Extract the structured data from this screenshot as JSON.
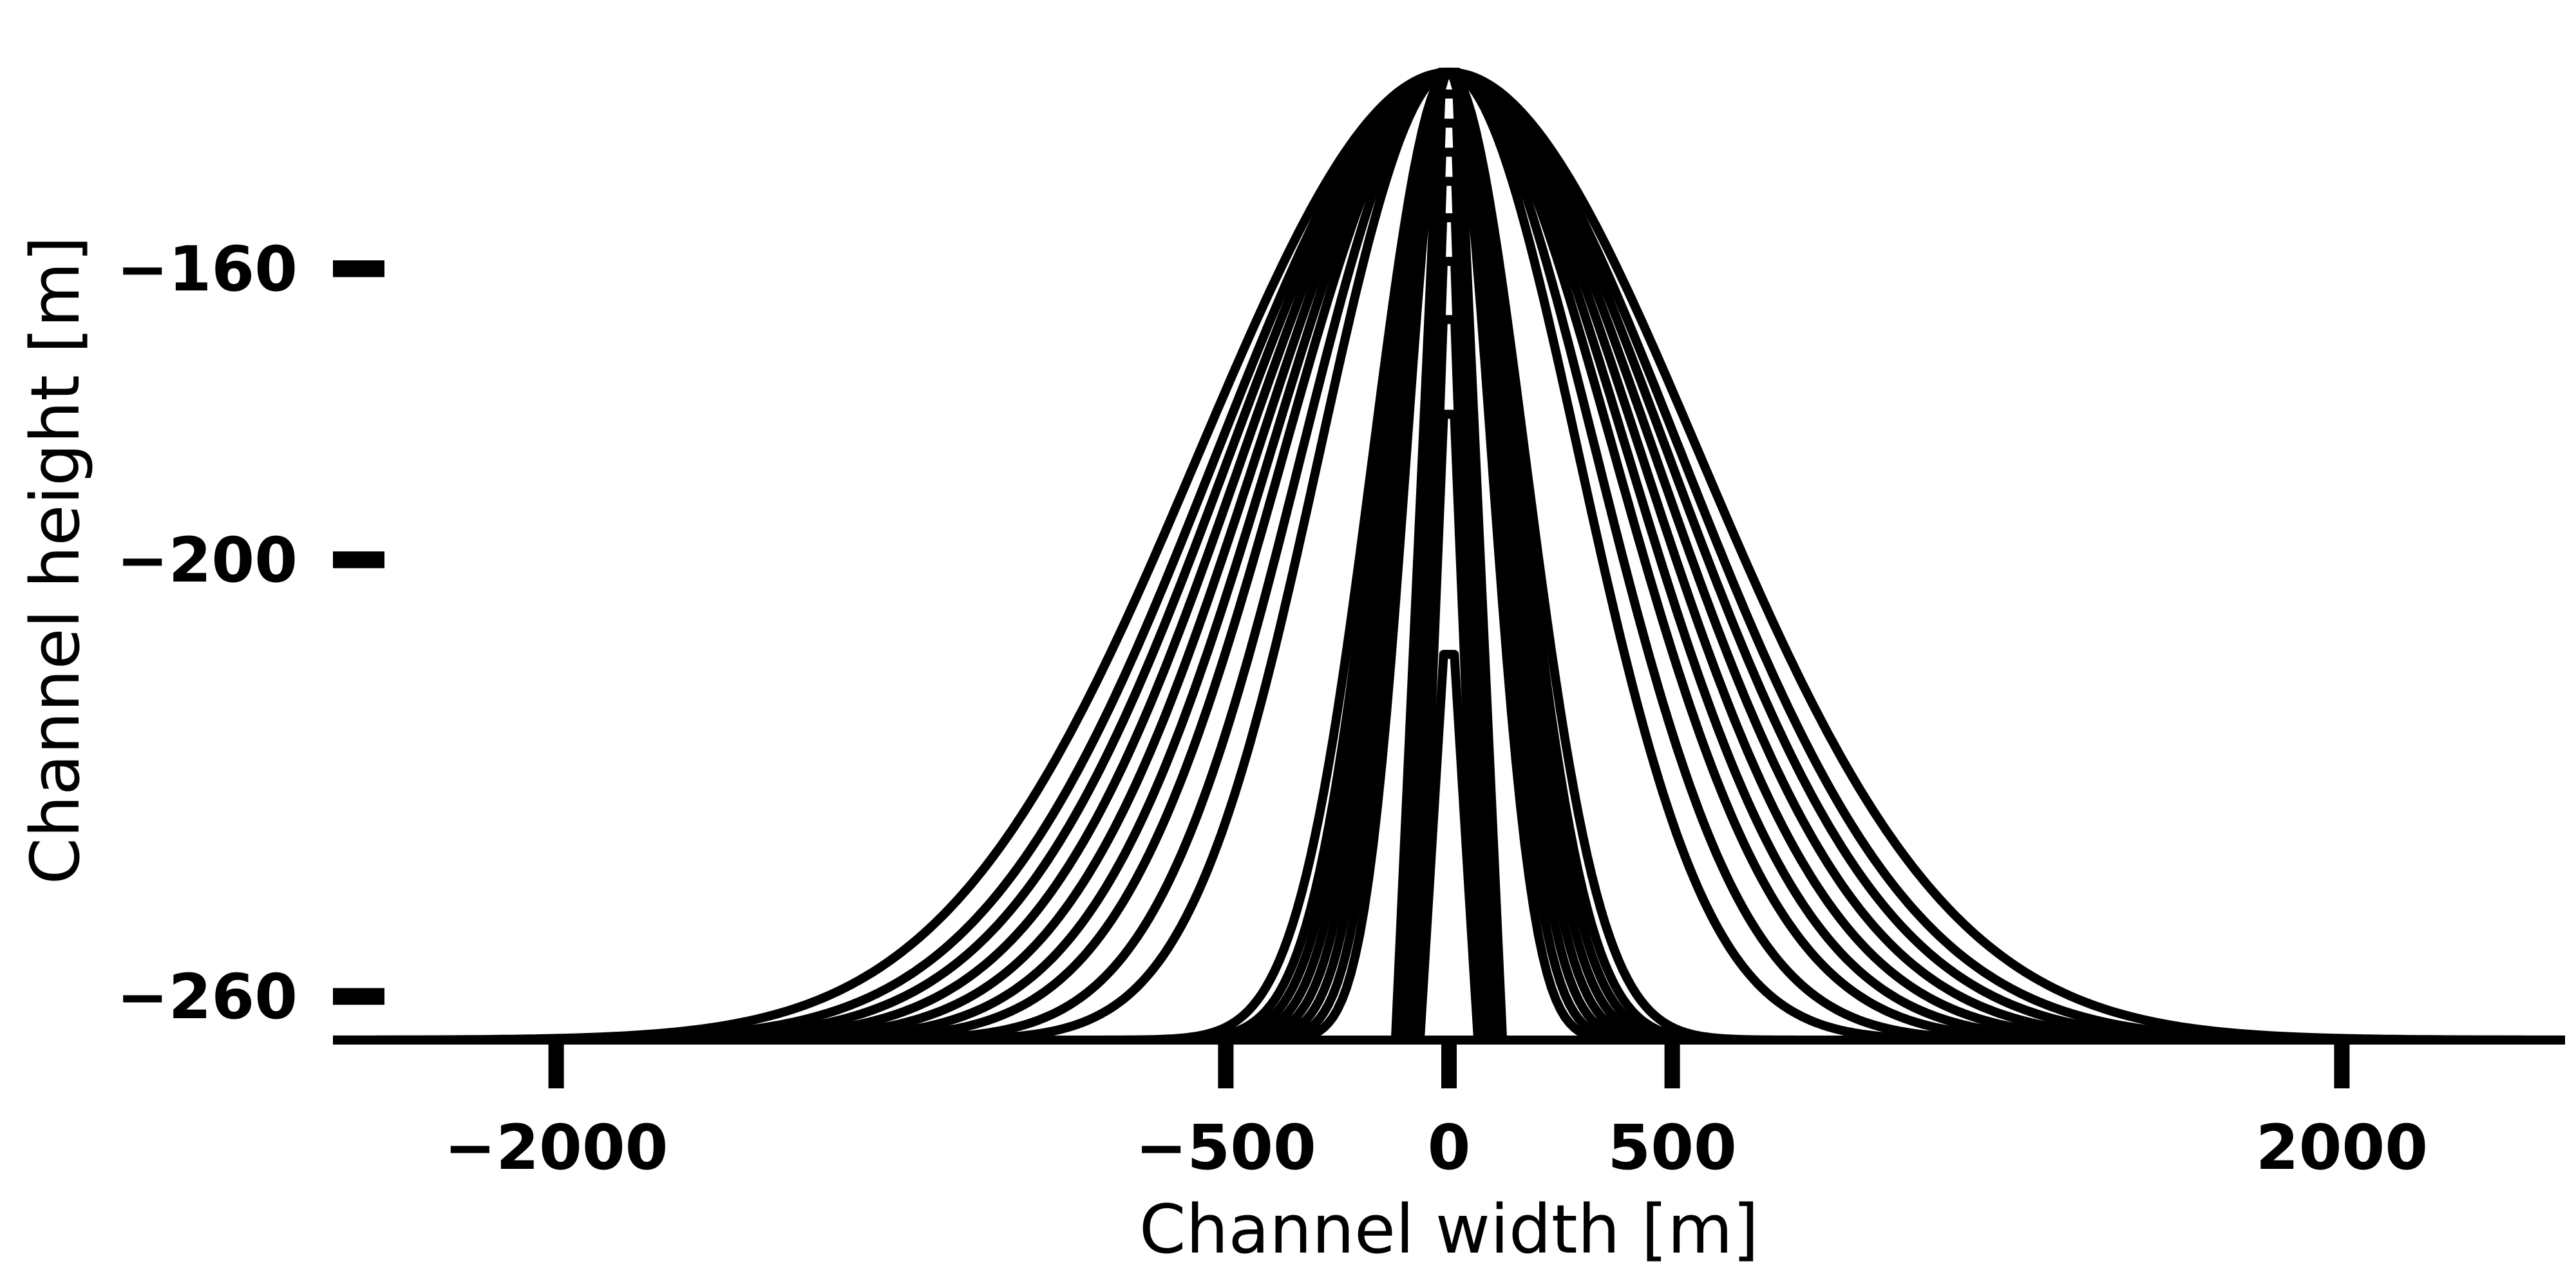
{
  "chart_data": {
    "type": "line",
    "title": "",
    "xlabel": "Channel width [m]",
    "ylabel": "Channel height [m]",
    "xlim": [
      -2500,
      2500
    ],
    "ylim": [
      -266,
      -131
    ],
    "xticks": [
      -2000,
      -500,
      0,
      500,
      2000
    ],
    "yticks": [
      -160,
      -200,
      -260
    ],
    "xtick_labels": [
      "−2000",
      "−500",
      "0",
      "500",
      "2000"
    ],
    "ytick_labels": [
      "−160",
      "−200",
      "−260"
    ],
    "grid": false,
    "legend": "none",
    "color": "#000000",
    "baseline_y": -266,
    "peak_y": -133,
    "gaussian_profiles_sigma": [
      560,
      520,
      490,
      460,
      430,
      400,
      370,
      330,
      290
    ],
    "narrow_profiles_sigma": [
      170,
      155,
      145,
      135,
      125,
      115,
      105,
      95
    ],
    "steep_profiles": [
      {
        "half_width_base": 120,
        "half_width_top": 20,
        "top_y": -133
      },
      {
        "half_width_base": 105,
        "half_width_top": 18,
        "top_y": -136
      },
      {
        "half_width_base": 95,
        "half_width_top": 17,
        "top_y": -140
      },
      {
        "half_width_base": 90,
        "half_width_top": 16,
        "top_y": -144
      },
      {
        "half_width_base": 85,
        "half_width_top": 15,
        "top_y": -148
      },
      {
        "half_width_base": 80,
        "half_width_top": 14,
        "top_y": -153
      },
      {
        "half_width_base": 75,
        "half_width_top": 13,
        "top_y": -159
      },
      {
        "half_width_base": 72,
        "half_width_top": 13,
        "top_y": -167
      },
      {
        "half_width_base": 70,
        "half_width_top": 12,
        "top_y": -180
      },
      {
        "half_width_base": 65,
        "half_width_top": 12,
        "top_y": -213
      }
    ]
  }
}
